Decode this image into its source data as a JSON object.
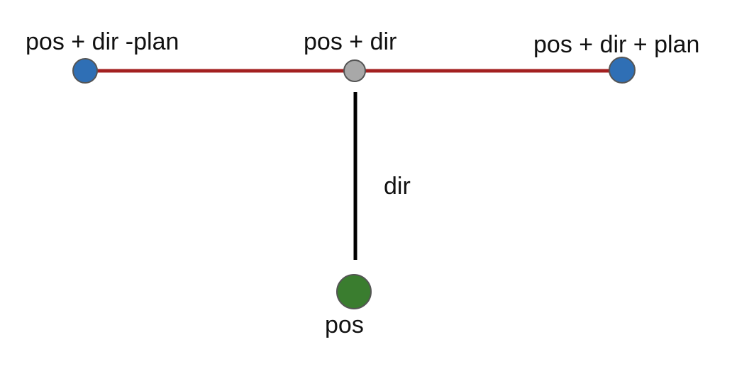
{
  "labels": {
    "pos_dir_minus_plan": "pos + dir -plan",
    "pos_dir": "pos + dir",
    "pos_dir_plus_plan": "pos + dir + plan",
    "dir": "dir",
    "pos": "pos"
  },
  "colors": {
    "plane_line": "#a32020",
    "dir_line": "#000000",
    "plane_endpoint_fill": "#2f6fb5",
    "center_point_fill": "#a8a8a8",
    "pos_point_fill": "#3a7d2f",
    "point_stroke": "#555555",
    "text": "#111111"
  }
}
